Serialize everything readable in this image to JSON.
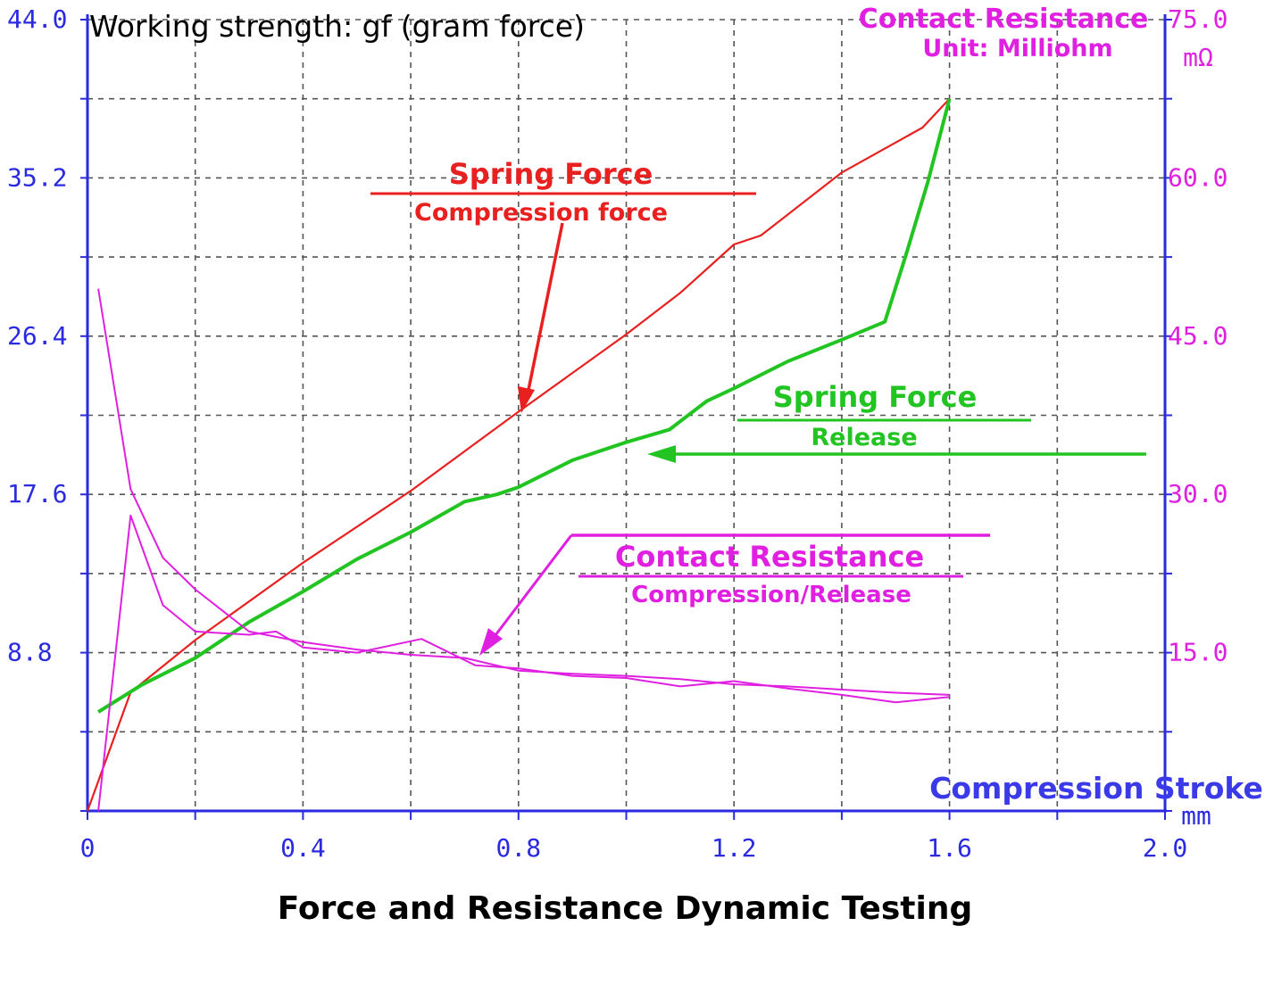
{
  "chart_data": {
    "type": "line",
    "title": "Force and Resistance Dynamic Testing",
    "y_left_label": "Working strength: gf (gram force)",
    "y_right_label": "Contact Resistance",
    "y_right_sublabel": "Unit: Milliohm",
    "y_right_unit": "mΩ",
    "xlabel": "Compression Stroke",
    "x_unit": "mm",
    "xlim": [
      0,
      2.0
    ],
    "ylim_left": [
      0,
      44.0
    ],
    "ylim_right": [
      0,
      75.0
    ],
    "x_ticks": [
      "0",
      "0.4",
      "0.8",
      "1.2",
      "1.6",
      "2.0"
    ],
    "y_left_ticks": [
      "44.0",
      "35.2",
      "26.4",
      "17.6",
      "8.8"
    ],
    "y_right_ticks": [
      "75.0",
      "60.0",
      "45.0",
      "30.0",
      "15.0"
    ],
    "grid": true,
    "colors": {
      "axis": "#2a2ae0",
      "right_axis": "#e020e0",
      "grid": "#555555",
      "compression": "#e82020",
      "release": "#22c422",
      "resistance": "#e020e0",
      "stroke_label": "#3a3ae8"
    },
    "series": [
      {
        "name": "Spring Force Compression force",
        "axis": "left",
        "x": [
          0.0,
          0.08,
          0.2,
          0.4,
          0.6,
          0.8,
          1.0,
          1.1,
          1.2,
          1.25,
          1.4,
          1.55,
          1.6
        ],
        "y": [
          0.0,
          6.6,
          9.5,
          13.8,
          17.8,
          22.2,
          26.5,
          28.8,
          31.5,
          32.0,
          35.5,
          38.0,
          39.6
        ]
      },
      {
        "name": "Spring Force Release",
        "axis": "left",
        "x": [
          0.02,
          0.1,
          0.2,
          0.3,
          0.4,
          0.5,
          0.6,
          0.7,
          0.76,
          0.8,
          0.9,
          1.0,
          1.08,
          1.15,
          1.2,
          1.3,
          1.4,
          1.48,
          1.52,
          1.56,
          1.6
        ],
        "y": [
          5.5,
          7.0,
          8.5,
          10.5,
          12.2,
          14.0,
          15.5,
          17.2,
          17.6,
          18.0,
          19.5,
          20.5,
          21.2,
          22.8,
          23.5,
          25.0,
          26.2,
          27.2,
          31.0,
          35.0,
          39.6
        ]
      },
      {
        "name": "Contact Resistance Compression",
        "axis": "right",
        "x": [
          0.02,
          0.08,
          0.14,
          0.2,
          0.3,
          0.35,
          0.4,
          0.5,
          0.62,
          0.72,
          0.8,
          0.9,
          1.0,
          1.1,
          1.2,
          1.3,
          1.4,
          1.5,
          1.6
        ],
        "y": [
          0.0,
          28.0,
          19.5,
          17.0,
          16.7,
          17.0,
          15.5,
          15.0,
          16.3,
          13.8,
          13.5,
          12.8,
          12.6,
          11.8,
          12.3,
          11.6,
          11.0,
          10.3,
          10.8
        ]
      },
      {
        "name": "Contact Resistance Release",
        "axis": "right",
        "x": [
          0.02,
          0.08,
          0.14,
          0.2,
          0.3,
          0.4,
          0.5,
          0.6,
          0.7,
          0.8,
          0.9,
          1.0,
          1.1,
          1.2,
          1.3,
          1.4,
          1.5,
          1.6
        ],
        "y": [
          49.5,
          30.5,
          24.0,
          21.0,
          17.0,
          16.0,
          15.3,
          14.8,
          14.5,
          13.3,
          13.0,
          12.8,
          12.5,
          12.0,
          11.8,
          11.5,
          11.2,
          11.0
        ]
      }
    ],
    "annotations": {
      "compression_title": "Spring Force",
      "compression_sub": "Compression force",
      "release_title": "Spring Force",
      "release_sub": "Release",
      "resistance_title": "Contact Resistance",
      "resistance_sub": "Compression/Release"
    }
  }
}
